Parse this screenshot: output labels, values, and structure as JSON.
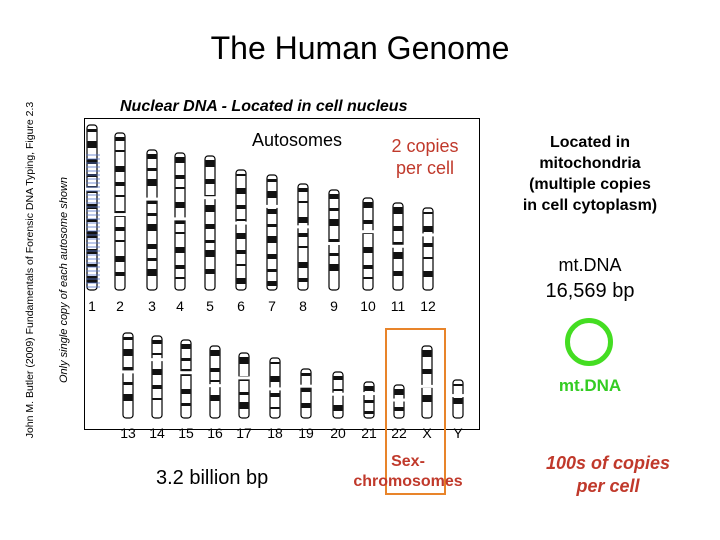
{
  "slide": {
    "title": "The Human Genome",
    "credit": "John M. Butler (2009) Fundamentals of Forensic DNA Typing, Figure 2.3",
    "side_note": "Only single copy of each autosome shown"
  },
  "nuclear": {
    "label": "Nuclear DNA - Located in cell nucleus",
    "autosomes_label": "Autosomes",
    "copies_line1": "2 copies",
    "copies_line2": "per cell",
    "row1_numbers": [
      "1",
      "2",
      "3",
      "4",
      "5",
      "6",
      "7",
      "8",
      "9",
      "10",
      "11",
      "12"
    ],
    "row2_numbers": [
      "13",
      "14",
      "15",
      "16",
      "17",
      "18",
      "19",
      "20",
      "21",
      "22",
      "X",
      "Y"
    ],
    "sex_line1": "Sex-",
    "sex_line2": "chromosomes",
    "size": "3.2 billion bp"
  },
  "mito": {
    "located_line1": "Located in",
    "located_line2": "mitochondria",
    "located_line3": "(multiple copies",
    "located_line4": "in cell cytoplasm)",
    "name": "mt.DNA",
    "size": "16,569 bp",
    "circle_label": "mt.DNA",
    "copies_line1": "100s of copies",
    "copies_line2": "per cell"
  },
  "colors": {
    "accent_red": "#c0392b",
    "sex_box": "#e8842a",
    "mito_green": "#44dd22"
  }
}
